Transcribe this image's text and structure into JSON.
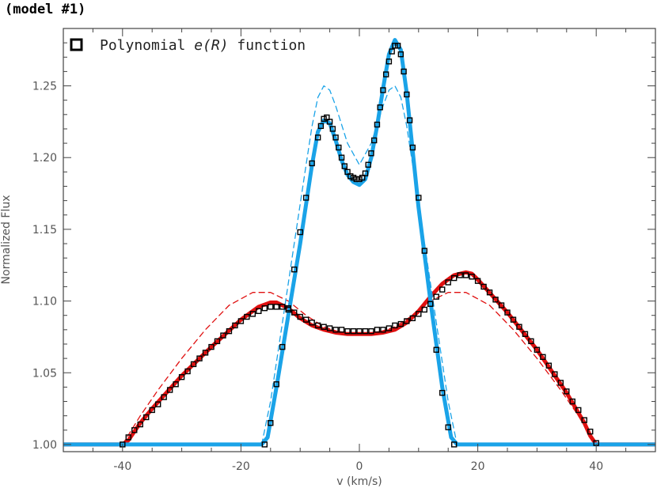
{
  "title": "(model #1)",
  "colors": {
    "blue": "#1aa3e8",
    "red": "#e01010",
    "black": "#000000"
  },
  "chart_data": {
    "type": "line",
    "xlabel": "v (km/s)",
    "ylabel": "Normalized Flux",
    "xlim": [
      -50,
      50
    ],
    "ylim": [
      0.995,
      1.29
    ],
    "xticks": [
      -40,
      -20,
      0,
      20,
      40
    ],
    "yticks": [
      1.0,
      1.05,
      1.1,
      1.15,
      1.2,
      1.25
    ],
    "xtick_labels": [
      "-40",
      "-20",
      "0",
      "20",
      "40"
    ],
    "ytick_labels": [
      "1.00",
      "1.05",
      "1.10",
      "1.15",
      "1.20",
      "1.25"
    ],
    "legend": {
      "position": "top-left",
      "label": "Polynomial",
      "label_italic": "e(R)",
      "label_tail": "function",
      "marker": "open-square"
    },
    "series": [
      {
        "style": "thick-blue-solid",
        "x": [
          -50,
          -16.5,
          -15.5,
          -14,
          -12,
          -10,
          -8,
          -7,
          -6,
          -5,
          -4,
          -3,
          -2,
          -1,
          0,
          1,
          2,
          3,
          4,
          5,
          6,
          7,
          8,
          9,
          10,
          12,
          14,
          15.5,
          16.5,
          50
        ],
        "y": [
          1.0,
          1.0,
          1.005,
          1.04,
          1.09,
          1.14,
          1.195,
          1.218,
          1.226,
          1.224,
          1.212,
          1.198,
          1.188,
          1.183,
          1.181,
          1.185,
          1.2,
          1.222,
          1.248,
          1.272,
          1.282,
          1.275,
          1.245,
          1.205,
          1.165,
          1.1,
          1.04,
          1.005,
          1.0,
          1.0
        ]
      },
      {
        "style": "thin-blue-dashed",
        "x": [
          -16.5,
          -15,
          -13,
          -11,
          -9,
          -8,
          -7,
          -6,
          -5,
          -4,
          -2,
          0,
          2,
          4,
          5,
          6,
          7,
          8,
          9,
          11,
          13,
          15,
          16.5
        ],
        "y": [
          1.0,
          1.03,
          1.085,
          1.14,
          1.195,
          1.222,
          1.242,
          1.25,
          1.247,
          1.236,
          1.21,
          1.195,
          1.21,
          1.236,
          1.247,
          1.25,
          1.242,
          1.222,
          1.195,
          1.14,
          1.085,
          1.03,
          1.0
        ]
      },
      {
        "style": "thick-red-solid",
        "x": [
          -50,
          -40,
          -39,
          -37,
          -35,
          -30,
          -25,
          -20,
          -17,
          -15,
          -14,
          -12,
          -10,
          -8,
          -6,
          -4,
          -2,
          0,
          2,
          4,
          6,
          8,
          10,
          12,
          14,
          16,
          18,
          19,
          20,
          25,
          30,
          35,
          38,
          39,
          40,
          50
        ],
        "y": [
          1.0,
          1.0,
          1.003,
          1.015,
          1.025,
          1.048,
          1.068,
          1.087,
          1.096,
          1.099,
          1.099,
          1.095,
          1.088,
          1.083,
          1.08,
          1.078,
          1.077,
          1.077,
          1.077,
          1.078,
          1.08,
          1.085,
          1.093,
          1.103,
          1.112,
          1.118,
          1.12,
          1.119,
          1.115,
          1.092,
          1.066,
          1.036,
          1.015,
          1.006,
          1.0,
          1.0
        ]
      },
      {
        "style": "thin-red-dashed",
        "x": [
          -40,
          -37,
          -34,
          -30,
          -26,
          -22,
          -18,
          -15,
          -12,
          -9,
          -6,
          -3,
          0,
          3,
          6,
          9,
          12,
          15,
          18,
          22,
          26,
          30,
          34,
          37,
          40
        ],
        "y": [
          1.0,
          1.02,
          1.038,
          1.06,
          1.08,
          1.097,
          1.106,
          1.106,
          1.1,
          1.09,
          1.082,
          1.078,
          1.077,
          1.078,
          1.082,
          1.09,
          1.1,
          1.106,
          1.106,
          1.097,
          1.08,
          1.06,
          1.038,
          1.02,
          1.0
        ]
      },
      {
        "style": "open-square-markers-black",
        "x": [
          -40,
          -39,
          -38,
          -37,
          -36,
          -35,
          -34,
          -33,
          -32,
          -31,
          -30,
          -29,
          -28,
          -27,
          -26,
          -25,
          -24,
          -23,
          -22,
          -21,
          -20,
          -19,
          -18,
          -17,
          -16,
          -15,
          -14,
          -13,
          -12,
          -11,
          -10,
          -9,
          -8,
          -7,
          -6,
          -5,
          -4,
          -3,
          -2,
          -1,
          0,
          1,
          2,
          3,
          4,
          5,
          6,
          7,
          8,
          9,
          10,
          11,
          12,
          13,
          14,
          15,
          16,
          17,
          18,
          19,
          20,
          21,
          22,
          23,
          24,
          25,
          26,
          27,
          28,
          29,
          30,
          31,
          32,
          33,
          34,
          35,
          36,
          37,
          38,
          39,
          40
        ],
        "y": [
          1.0,
          1.005,
          1.01,
          1.014,
          1.019,
          1.024,
          1.028,
          1.033,
          1.038,
          1.042,
          1.047,
          1.051,
          1.056,
          1.06,
          1.064,
          1.068,
          1.072,
          1.076,
          1.079,
          1.083,
          1.086,
          1.089,
          1.091,
          1.093,
          1.095,
          1.096,
          1.096,
          1.096,
          1.094,
          1.092,
          1.089,
          1.087,
          1.085,
          1.083,
          1.082,
          1.081,
          1.08,
          1.08,
          1.079,
          1.079,
          1.079,
          1.079,
          1.079,
          1.08,
          1.08,
          1.081,
          1.083,
          1.084,
          1.086,
          1.088,
          1.091,
          1.094,
          1.098,
          1.103,
          1.108,
          1.113,
          1.116,
          1.118,
          1.118,
          1.117,
          1.114,
          1.11,
          1.106,
          1.101,
          1.097,
          1.092,
          1.087,
          1.082,
          1.077,
          1.072,
          1.066,
          1.061,
          1.055,
          1.049,
          1.043,
          1.037,
          1.03,
          1.024,
          1.017,
          1.009,
          1.001
        ]
      },
      {
        "style": "open-square-markers-black",
        "x": [
          -16,
          -15,
          -14,
          -13,
          -12,
          -11,
          -10,
          -9,
          -8,
          -7,
          -6.5,
          -6,
          -5.5,
          -5,
          -4.5,
          -4,
          -3.5,
          -3,
          -2.5,
          -2,
          -1.5,
          -1,
          -0.5,
          0,
          0.5,
          1,
          1.5,
          2,
          2.5,
          3,
          3.5,
          4,
          4.5,
          5,
          5.5,
          6,
          6.5,
          7,
          7.5,
          8,
          8.5,
          9,
          10,
          11,
          12,
          13,
          14,
          15,
          16
        ],
        "y": [
          1.0,
          1.015,
          1.042,
          1.068,
          1.095,
          1.122,
          1.148,
          1.172,
          1.196,
          1.214,
          1.222,
          1.227,
          1.228,
          1.225,
          1.22,
          1.214,
          1.207,
          1.2,
          1.194,
          1.19,
          1.187,
          1.186,
          1.185,
          1.185,
          1.186,
          1.189,
          1.195,
          1.203,
          1.212,
          1.223,
          1.235,
          1.247,
          1.258,
          1.267,
          1.274,
          1.278,
          1.278,
          1.272,
          1.26,
          1.244,
          1.226,
          1.207,
          1.172,
          1.135,
          1.098,
          1.066,
          1.036,
          1.012,
          1.0
        ]
      }
    ]
  }
}
